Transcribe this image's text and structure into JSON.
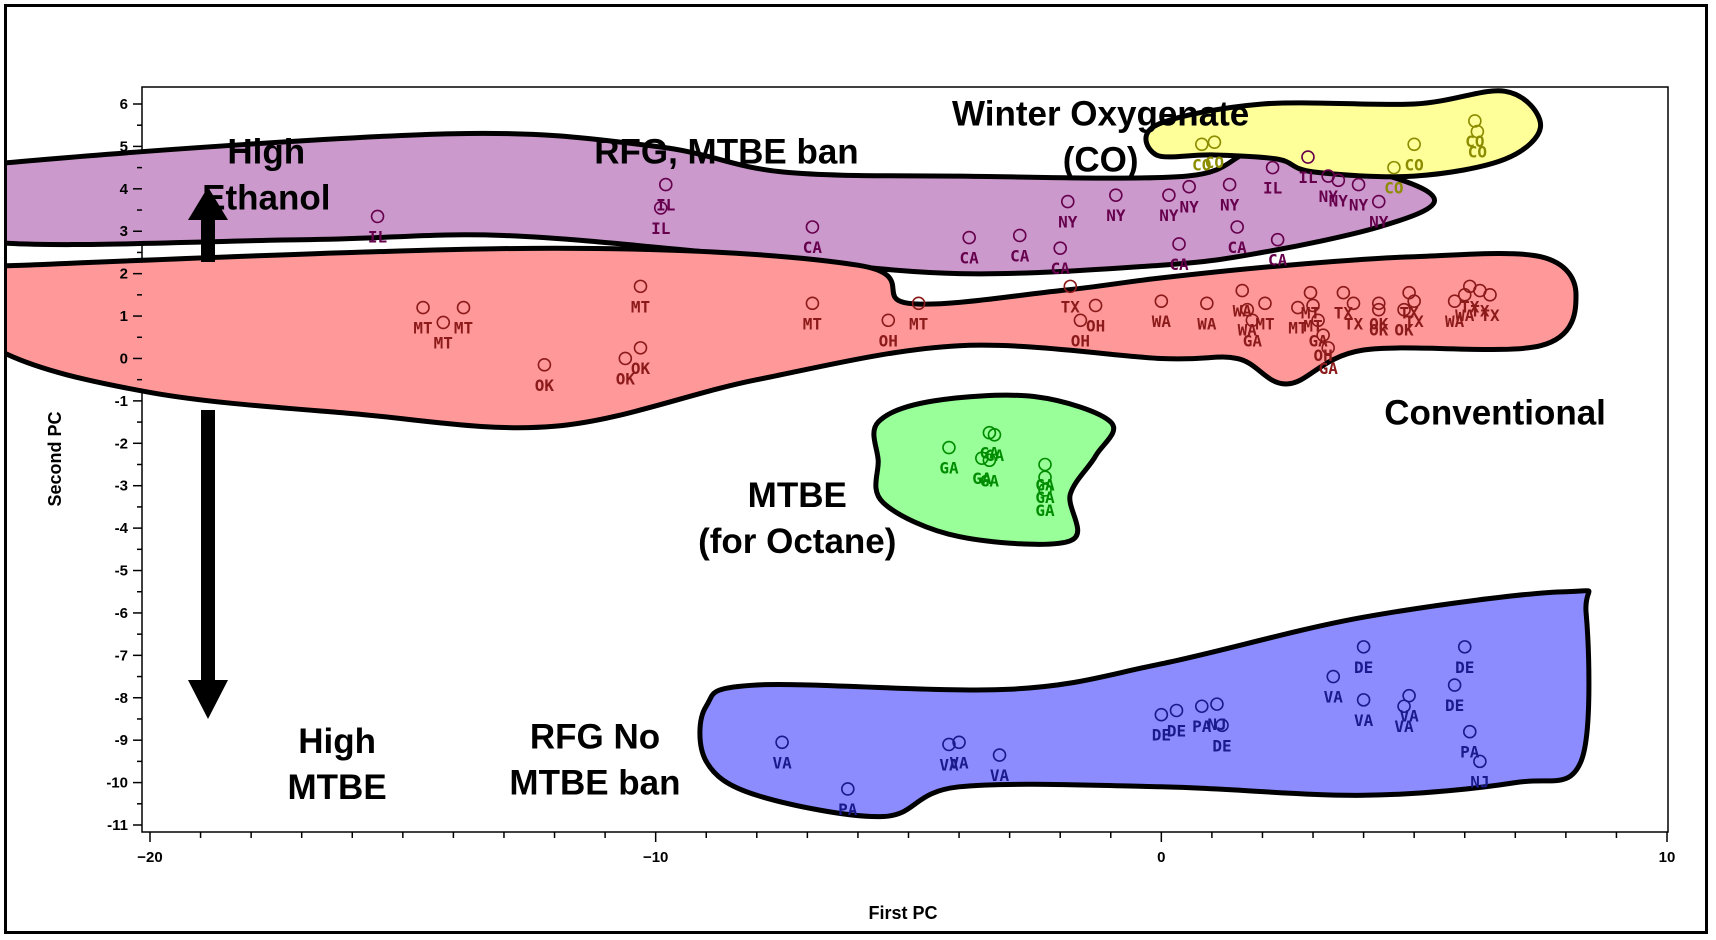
{
  "chart_data": {
    "type": "scatter",
    "title": "",
    "xlabel": "First PC",
    "ylabel": "Second PC",
    "xlim": [
      -20,
      10
    ],
    "ylim": [
      -11,
      6.3
    ],
    "x_ticks": [
      -20,
      -10,
      0,
      10
    ],
    "y_ticks": [
      6,
      5,
      4,
      3,
      2,
      1,
      0,
      -1,
      -2,
      -3,
      -4,
      -5,
      -6,
      -7,
      -8,
      -9,
      -10,
      -11
    ],
    "x_tick_labels": [
      "−20",
      "−10",
      "0",
      "10"
    ],
    "y_tick_labels": [
      "6",
      "5",
      "4",
      "3",
      "2",
      "1",
      "0",
      "-1",
      "-2",
      "-3",
      "-4",
      "-5",
      "-6",
      "-7",
      "-8",
      "-9",
      "-10",
      "-11"
    ],
    "grid": false,
    "annotations": [
      {
        "id": "high-ethanol",
        "lines": [
          "High",
          "Ethanol"
        ],
        "x": -17.7,
        "y_top": 5.4
      },
      {
        "id": "high-mtbe",
        "lines": [
          "High",
          "MTBE"
        ],
        "x": -16.3,
        "y_top": -8.5
      },
      {
        "id": "rfg-mtbe-ban",
        "lines": [
          "RFG, MTBE ban"
        ],
        "x": -8.6,
        "y_top": 5.4
      },
      {
        "id": "winter-oxygenate",
        "lines": [
          "Winter Oxygenate",
          "(CO)"
        ],
        "x": -1.2,
        "y_top": 6.3
      },
      {
        "id": "conventional",
        "lines": [
          "Conventional"
        ],
        "x": 6.6,
        "y_top": -0.75
      },
      {
        "id": "mtbe-octane",
        "lines": [
          "MTBE",
          "(for Octane)"
        ],
        "x": -7.2,
        "y_top": -2.7
      },
      {
        "id": "rfg-no-mtbe-ban",
        "lines": [
          "RFG No",
          "MTBE ban"
        ],
        "x": -11.2,
        "y_top": -8.4
      }
    ],
    "groups": [
      {
        "name": "RFG, MTBE ban",
        "fill": "#cc99cc",
        "text_color": "#66004d",
        "outline": [
          [
            -23.5,
            4.3
          ],
          [
            -22,
            4.7
          ],
          [
            -14,
            5.3
          ],
          [
            -10,
            5
          ],
          [
            -7.5,
            4.4
          ],
          [
            -4,
            4.3
          ],
          [
            0.5,
            4.3
          ],
          [
            2,
            4.9
          ],
          [
            4.5,
            4.3
          ],
          [
            5.4,
            3.7
          ],
          [
            4.3,
            3.1
          ],
          [
            2,
            2.5
          ],
          [
            0,
            2.2
          ],
          [
            -4,
            2
          ],
          [
            -8,
            2.4
          ],
          [
            -13,
            2.9
          ],
          [
            -17,
            2.8
          ],
          [
            -23.5,
            2.8
          ]
        ],
        "points": [
          {
            "x": -15.5,
            "y": 3.35,
            "label": "IL"
          },
          {
            "x": -9.8,
            "y": 4.1,
            "label": "IL"
          },
          {
            "x": -9.9,
            "y": 3.55,
            "label": "IL"
          },
          {
            "x": -6.9,
            "y": 3.1,
            "label": "CA"
          },
          {
            "x": -3.8,
            "y": 2.85,
            "label": "CA"
          },
          {
            "x": -2.8,
            "y": 2.9,
            "label": "CA"
          },
          {
            "x": -2,
            "y": 2.6,
            "label": "CA"
          },
          {
            "x": -1.85,
            "y": 3.7,
            "label": "NY"
          },
          {
            "x": -0.9,
            "y": 3.85,
            "label": "NY"
          },
          {
            "x": 0.15,
            "y": 3.85,
            "label": "NY"
          },
          {
            "x": 0.55,
            "y": 4.05,
            "label": "NY"
          },
          {
            "x": 0.35,
            "y": 2.7,
            "label": "CA"
          },
          {
            "x": 1.5,
            "y": 3.1,
            "label": "CA"
          },
          {
            "x": 1.35,
            "y": 4.1,
            "label": "NY"
          },
          {
            "x": 2.2,
            "y": 4.5,
            "label": "IL"
          },
          {
            "x": 2.3,
            "y": 2.8,
            "label": "CA"
          },
          {
            "x": 2.9,
            "y": 4.75,
            "label": "IL"
          },
          {
            "x": 3.3,
            "y": 4.3,
            "label": "NY"
          },
          {
            "x": 3.5,
            "y": 4.2,
            "label": "NY"
          },
          {
            "x": 3.9,
            "y": 4.1,
            "label": "NY"
          },
          {
            "x": 4.3,
            "y": 3.7,
            "label": "NY"
          }
        ]
      },
      {
        "name": "Winter Oxygenate (CO)",
        "fill": "#ffff99",
        "text_color": "#8c8c00",
        "outline": [
          [
            -0.1,
            5.5
          ],
          [
            2,
            6
          ],
          [
            5,
            6
          ],
          [
            6.8,
            6.3
          ],
          [
            7.5,
            5.5
          ],
          [
            6.8,
            4.7
          ],
          [
            5,
            4.3
          ],
          [
            3,
            4.4
          ],
          [
            2.3,
            4.7
          ],
          [
            1,
            4.8
          ],
          [
            -0.1,
            4.8
          ]
        ],
        "points": [
          {
            "x": 0.8,
            "y": 5.05,
            "label": "CO"
          },
          {
            "x": 1.05,
            "y": 5.1,
            "label": "CO"
          },
          {
            "x": 5,
            "y": 5.05,
            "label": "CO"
          },
          {
            "x": 4.6,
            "y": 4.5,
            "label": "CO"
          },
          {
            "x": 6.2,
            "y": 5.6,
            "label": "CO"
          },
          {
            "x": 6.25,
            "y": 5.35,
            "label": "CO"
          }
        ]
      },
      {
        "name": "Conventional",
        "fill": "#ff9999",
        "text_color": "#8c1a1a",
        "outline": [
          [
            -24.5,
            2
          ],
          [
            -22.5,
            2.2
          ],
          [
            -12,
            2.6
          ],
          [
            -6,
            2.2
          ],
          [
            -5,
            1.3
          ],
          [
            -2,
            1.6
          ],
          [
            0,
            1.9
          ],
          [
            2.5,
            2.2
          ],
          [
            5,
            2.4
          ],
          [
            7.5,
            2.4
          ],
          [
            8.2,
            1.5
          ],
          [
            7.5,
            0.3
          ],
          [
            4,
            0.2
          ],
          [
            2.5,
            -0.6
          ],
          [
            1.5,
            0
          ],
          [
            0,
            0
          ],
          [
            -4,
            0.3
          ],
          [
            -8,
            -0.5
          ],
          [
            -12,
            -1.6
          ],
          [
            -16,
            -1.3
          ],
          [
            -20,
            -0.8
          ],
          [
            -23,
            0.2
          ]
        ],
        "points": [
          {
            "x": -14.6,
            "y": 1.2,
            "label": "MT"
          },
          {
            "x": -14.2,
            "y": 0.85,
            "label": "MT"
          },
          {
            "x": -13.8,
            "y": 1.2,
            "label": "MT"
          },
          {
            "x": -12.2,
            "y": -0.15,
            "label": "OK"
          },
          {
            "x": -10.6,
            "y": 0,
            "label": "OK"
          },
          {
            "x": -10.3,
            "y": 0.25,
            "label": "OK"
          },
          {
            "x": -10.3,
            "y": 1.7,
            "label": "MT"
          },
          {
            "x": -6.9,
            "y": 1.3,
            "label": "MT"
          },
          {
            "x": -5.4,
            "y": 0.9,
            "label": "OH"
          },
          {
            "x": -4.8,
            "y": 1.3,
            "label": "MT"
          },
          {
            "x": -1.8,
            "y": 1.7,
            "label": "TX"
          },
          {
            "x": -1.6,
            "y": 0.9,
            "label": "OH"
          },
          {
            "x": -1.3,
            "y": 1.25,
            "label": "OH"
          },
          {
            "x": 0,
            "y": 1.35,
            "label": "WA"
          },
          {
            "x": 0.9,
            "y": 1.3,
            "label": "WA"
          },
          {
            "x": 1.6,
            "y": 1.6,
            "label": "WA"
          },
          {
            "x": 1.7,
            "y": 1.15,
            "label": "WA"
          },
          {
            "x": 1.8,
            "y": 0.9,
            "label": "GA"
          },
          {
            "x": 2.05,
            "y": 1.3,
            "label": "MT"
          },
          {
            "x": 2.7,
            "y": 1.2,
            "label": "MT"
          },
          {
            "x": 2.95,
            "y": 1.55,
            "label": "MT"
          },
          {
            "x": 3,
            "y": 1.25,
            "label": "MT"
          },
          {
            "x": 3.1,
            "y": 0.9,
            "label": "GA"
          },
          {
            "x": 3.2,
            "y": 0.55,
            "label": "OH"
          },
          {
            "x": 3.3,
            "y": 0.25,
            "label": "GA"
          },
          {
            "x": 3.6,
            "y": 1.55,
            "label": "TX"
          },
          {
            "x": 3.8,
            "y": 1.3,
            "label": "TX"
          },
          {
            "x": 4.3,
            "y": 1.3,
            "label": "OK"
          },
          {
            "x": 4.3,
            "y": 1.15,
            "label": "OK"
          },
          {
            "x": 4.8,
            "y": 1.15,
            "label": "OK"
          },
          {
            "x": 4.9,
            "y": 1.55,
            "label": "TX"
          },
          {
            "x": 5,
            "y": 1.35,
            "label": "TX"
          },
          {
            "x": 5.8,
            "y": 1.35,
            "label": "WA"
          },
          {
            "x": 6,
            "y": 1.5,
            "label": "WA"
          },
          {
            "x": 6.1,
            "y": 1.7,
            "label": "TX"
          },
          {
            "x": 6.3,
            "y": 1.6,
            "label": "TX"
          },
          {
            "x": 6.5,
            "y": 1.5,
            "label": "TX"
          }
        ]
      },
      {
        "name": "MTBE (for Octane)",
        "fill": "#99ff99",
        "text_color": "#008c00",
        "outline": [
          [
            -5.6,
            -1.5
          ],
          [
            -4.5,
            -1
          ],
          [
            -2.5,
            -0.9
          ],
          [
            -1,
            -1.5
          ],
          [
            -1.3,
            -2.3
          ],
          [
            -1.8,
            -3.2
          ],
          [
            -1.8,
            -4.3
          ],
          [
            -4,
            -4.2
          ],
          [
            -5.5,
            -3.4
          ],
          [
            -5.6,
            -2.4
          ]
        ],
        "points": [
          {
            "x": -4.2,
            "y": -2.1,
            "label": "GA"
          },
          {
            "x": -3.4,
            "y": -1.75,
            "label": "GA"
          },
          {
            "x": -3.3,
            "y": -1.8,
            "label": "GA"
          },
          {
            "x": -3.55,
            "y": -2.35,
            "label": "GA"
          },
          {
            "x": -3.4,
            "y": -2.4,
            "label": "GA"
          },
          {
            "x": -2.3,
            "y": -2.5,
            "label": "GA"
          },
          {
            "x": -2.3,
            "y": -2.8,
            "label": "GA"
          },
          {
            "x": -2.3,
            "y": -3.1,
            "label": "GA"
          }
        ]
      },
      {
        "name": "RFG No MTBE ban",
        "fill": "#8c8cff",
        "text_color": "#1a1a8c",
        "outline": [
          [
            -9,
            -8.2
          ],
          [
            -8,
            -7.7
          ],
          [
            -3,
            -7.8
          ],
          [
            0,
            -7.2
          ],
          [
            4,
            -6.1
          ],
          [
            8,
            -5.5
          ],
          [
            8.4,
            -6
          ],
          [
            8.3,
            -9.5
          ],
          [
            7,
            -10
          ],
          [
            4,
            -10.3
          ],
          [
            0,
            -10.1
          ],
          [
            -4,
            -10.1
          ],
          [
            -5.5,
            -10.8
          ],
          [
            -8,
            -10.3
          ],
          [
            -9,
            -9.5
          ]
        ],
        "points": [
          {
            "x": -7.5,
            "y": -9.05,
            "label": "VA"
          },
          {
            "x": -6.2,
            "y": -10.15,
            "label": "PA"
          },
          {
            "x": -4.2,
            "y": -9.1,
            "label": "VA"
          },
          {
            "x": -4,
            "y": -9.05,
            "label": "VA"
          },
          {
            "x": -3.2,
            "y": -9.35,
            "label": "VA"
          },
          {
            "x": 0,
            "y": -8.4,
            "label": "DE"
          },
          {
            "x": 0.3,
            "y": -8.3,
            "label": "DE"
          },
          {
            "x": 0.8,
            "y": -8.2,
            "label": "PA"
          },
          {
            "x": 1.1,
            "y": -8.15,
            "label": "NJ"
          },
          {
            "x": 1.2,
            "y": -8.65,
            "label": "DE"
          },
          {
            "x": 3.4,
            "y": -7.5,
            "label": "VA"
          },
          {
            "x": 4,
            "y": -6.8,
            "label": "DE"
          },
          {
            "x": 4,
            "y": -8.05,
            "label": "VA"
          },
          {
            "x": 4.8,
            "y": -8.2,
            "label": "VA"
          },
          {
            "x": 4.9,
            "y": -7.95,
            "label": "VA"
          },
          {
            "x": 5.8,
            "y": -7.7,
            "label": "DE"
          },
          {
            "x": 6,
            "y": -6.8,
            "label": "DE"
          },
          {
            "x": 6.1,
            "y": -8.8,
            "label": "PA"
          },
          {
            "x": 6.3,
            "y": -9.5,
            "label": "NJ"
          }
        ]
      }
    ]
  }
}
